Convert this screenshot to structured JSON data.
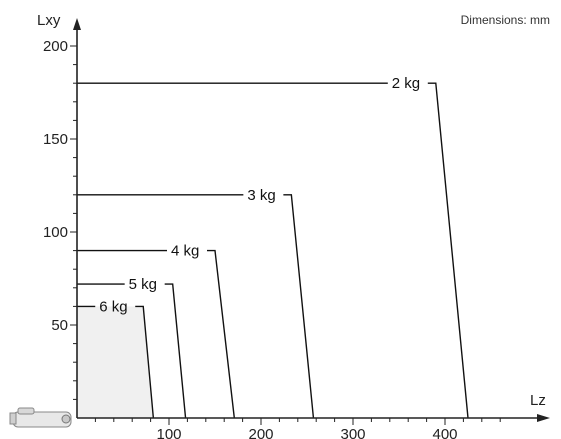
{
  "chart_data": {
    "type": "line",
    "units_note": "Dimensions: mm",
    "xlabel": "Lz",
    "ylabel": "Lxy",
    "xlim": [
      0,
      500
    ],
    "ylim": [
      0,
      210
    ],
    "x_ticks": [
      100,
      200,
      300,
      400
    ],
    "y_ticks": [
      50,
      100,
      150,
      200
    ],
    "grid": false,
    "series": [
      {
        "name": "2 kg",
        "points": [
          [
            0,
            180
          ],
          [
            390,
            180
          ],
          [
            425,
            0
          ]
        ]
      },
      {
        "name": "3 kg",
        "points": [
          [
            0,
            120
          ],
          [
            233,
            120
          ],
          [
            257,
            0
          ]
        ]
      },
      {
        "name": "4 kg",
        "points": [
          [
            0,
            90
          ],
          [
            150,
            90
          ],
          [
            171,
            0
          ]
        ]
      },
      {
        "name": "5 kg",
        "points": [
          [
            0,
            72
          ],
          [
            104,
            72
          ],
          [
            118,
            0
          ]
        ]
      },
      {
        "name": "6 kg",
        "points": [
          [
            0,
            60
          ],
          [
            72,
            60
          ],
          [
            83,
            0
          ]
        ]
      }
    ],
    "shaded_region": {
      "points": [
        [
          0,
          60
        ],
        [
          72,
          60
        ],
        [
          83,
          0
        ],
        [
          0,
          0
        ]
      ],
      "color": "#f0f0f0"
    },
    "colors": {
      "line": "#111111",
      "axis": "#222222",
      "fill": "#f0f0f0"
    }
  }
}
